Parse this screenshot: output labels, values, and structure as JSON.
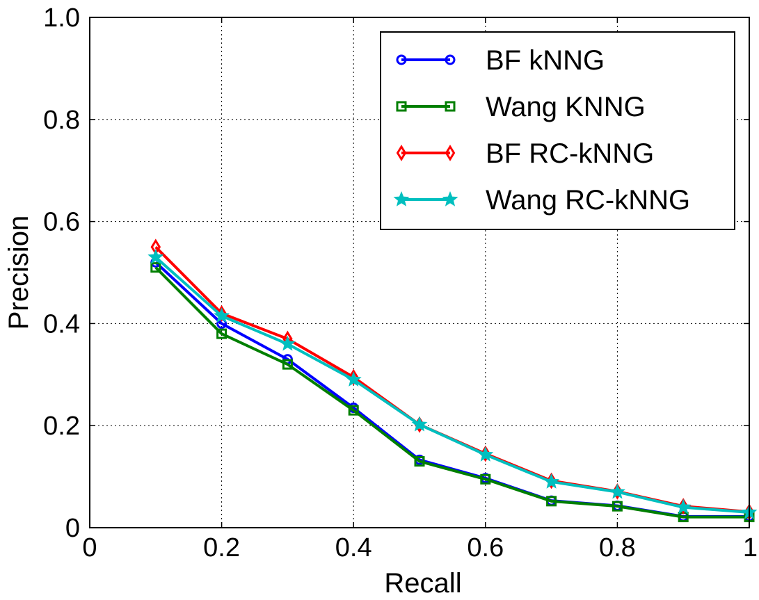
{
  "chart_data": {
    "type": "line",
    "title": "",
    "xlabel": "Recall",
    "ylabel": "Precision",
    "xlim": [
      0,
      1
    ],
    "ylim": [
      0,
      1
    ],
    "xticks": [
      "0",
      "0.2",
      "0.4",
      "0.6",
      "0.8",
      "1"
    ],
    "yticks": [
      "0",
      "0.2",
      "0.4",
      "0.6",
      "0.8",
      "1.0"
    ],
    "grid": true,
    "legend_position": "top-right",
    "x": [
      0.1,
      0.2,
      0.3,
      0.4,
      0.5,
      0.6,
      0.7,
      0.8,
      0.9,
      1.0
    ],
    "series": [
      {
        "name": "BF kNNG",
        "color": "#0000ff",
        "marker": "circle",
        "values": [
          0.52,
          0.4,
          0.33,
          0.235,
          0.133,
          0.097,
          0.053,
          0.043,
          0.022,
          0.022
        ]
      },
      {
        "name": "Wang KNNG",
        "color": "#007f00",
        "marker": "square",
        "values": [
          0.51,
          0.38,
          0.32,
          0.23,
          0.13,
          0.095,
          0.052,
          0.042,
          0.021,
          0.021
        ]
      },
      {
        "name": "BF RC-kNNG",
        "color": "#ff0000",
        "marker": "diamond",
        "values": [
          0.55,
          0.42,
          0.37,
          0.295,
          0.202,
          0.145,
          0.092,
          0.071,
          0.042,
          0.031
        ]
      },
      {
        "name": "Wang RC-kNNG",
        "color": "#00bfbf",
        "marker": "star",
        "values": [
          0.53,
          0.415,
          0.36,
          0.29,
          0.202,
          0.143,
          0.09,
          0.07,
          0.04,
          0.03
        ]
      }
    ]
  }
}
